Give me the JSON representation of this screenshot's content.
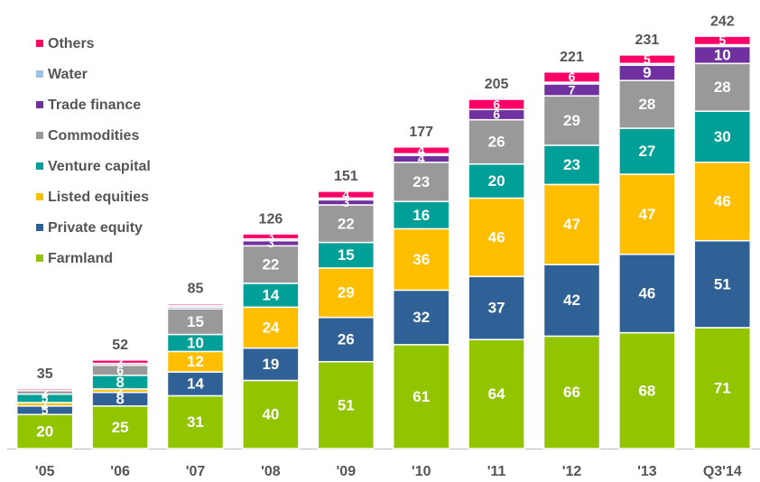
{
  "chart_data": {
    "type": "stacked_bar",
    "categories": [
      "'05",
      "'06",
      "'07",
      "'08",
      "'09",
      "'10",
      "'11",
      "'12",
      "'13",
      "Q3'14"
    ],
    "totals": [
      35,
      52,
      85,
      126,
      151,
      177,
      205,
      221,
      231,
      242
    ],
    "ylim": [
      0,
      250
    ],
    "legend": "top-left",
    "series": [
      {
        "name": "Farmland",
        "color": "#92c500",
        "values": [
          20,
          25,
          31,
          40,
          51,
          61,
          64,
          66,
          68,
          71
        ]
      },
      {
        "name": "Private equity",
        "color": "#2f6096",
        "values": [
          5,
          8,
          14,
          19,
          26,
          32,
          37,
          42,
          46,
          51
        ]
      },
      {
        "name": "Listed equities",
        "color": "#ffbf00",
        "values": [
          2,
          2,
          12,
          24,
          29,
          36,
          46,
          47,
          47,
          46
        ]
      },
      {
        "name": "Venture capital",
        "color": "#00a099",
        "values": [
          5,
          8,
          10,
          14,
          15,
          16,
          20,
          23,
          27,
          30
        ]
      },
      {
        "name": "Commodities",
        "color": "#999999",
        "values": [
          2,
          6,
          15,
          22,
          22,
          23,
          26,
          29,
          28,
          28
        ]
      },
      {
        "name": "Trade finance",
        "color": "#7030a0",
        "values": [
          0,
          1,
          1,
          3,
          3,
          4,
          6,
          7,
          9,
          10
        ]
      },
      {
        "name": "Water",
        "color": "#9dc3e6",
        "values": [
          0,
          0,
          1,
          1,
          1,
          1,
          0,
          1,
          1,
          1
        ]
      },
      {
        "name": "Others",
        "color": "#ff0066",
        "values": [
          1,
          2,
          1,
          3,
          4,
          4,
          6,
          6,
          5,
          5
        ]
      }
    ]
  }
}
